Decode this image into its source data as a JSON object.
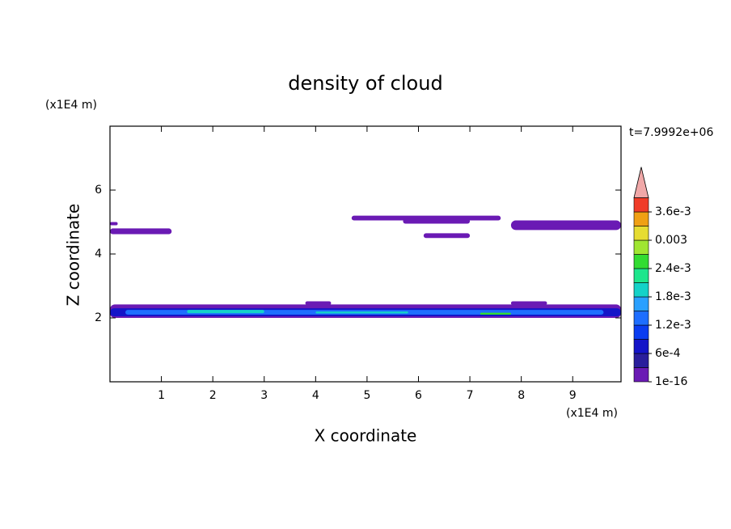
{
  "chart_data": {
    "type": "contour",
    "title": "density of cloud",
    "x_label": "X coordinate",
    "y_label": "Z coordinate",
    "x_unit": "(x1E4 m)",
    "y_unit": "(x1E4 m)",
    "annotation": "t=7.9992e+06",
    "xlim": [
      0,
      9.94
    ],
    "ylim": [
      0,
      8
    ],
    "xticks": [
      1,
      2,
      3,
      4,
      5,
      6,
      7,
      8,
      9
    ],
    "yticks": [
      2,
      4,
      6
    ],
    "levels": [
      1e-16,
      0.0003,
      0.0006,
      0.0009,
      0.0012,
      0.0015,
      0.0018,
      0.0021,
      0.0024,
      0.0027,
      0.003,
      0.0033,
      0.0036
    ],
    "colors": [
      "#6a1ab4",
      "#2a1e9c",
      "#1414c8",
      "#0a3cf0",
      "#1e6eff",
      "#2aa0ff",
      "#14d2c8",
      "#1ee68c",
      "#32dc32",
      "#a0e632",
      "#e6dc32",
      "#f0a014",
      "#f03c28"
    ],
    "extend_color": "#f0a8a8",
    "cbar_ticks": [
      1e-16,
      {
        "value": 0.0006,
        "label": "6e-4"
      },
      {
        "value": 0.0012,
        "label": "1.2e-3"
      },
      {
        "value": 0.0018,
        "label": "1.8e-3"
      },
      {
        "value": 0.0024,
        "label": "2.4e-3"
      },
      0.003,
      {
        "value": 0.0036,
        "label": "3.6e-3"
      }
    ],
    "regions": [
      {
        "x": [
          0,
          0.15
        ],
        "z": [
          4.9,
          5.0
        ],
        "value": 1e-16
      },
      {
        "x": [
          0,
          1.2
        ],
        "z": [
          4.62,
          4.8
        ],
        "value": 1e-16
      },
      {
        "x": [
          4.7,
          7.6
        ],
        "z": [
          5.05,
          5.2
        ],
        "value": 1e-16
      },
      {
        "x": [
          5.7,
          7.0
        ],
        "z": [
          4.95,
          5.1
        ],
        "value": 1e-16
      },
      {
        "x": [
          6.1,
          7.0
        ],
        "z": [
          4.5,
          4.65
        ],
        "value": 1e-16
      },
      {
        "x": [
          7.8,
          9.94
        ],
        "z": [
          4.75,
          5.05
        ],
        "value": 1e-16
      },
      {
        "x": [
          0,
          9.94
        ],
        "z": [
          2.0,
          2.42
        ],
        "value": 1e-16
      },
      {
        "x": [
          3.8,
          4.3
        ],
        "z": [
          2.4,
          2.52
        ],
        "value": 1e-16
      },
      {
        "x": [
          7.8,
          8.5
        ],
        "z": [
          2.4,
          2.52
        ],
        "value": 1e-16
      },
      {
        "x": [
          0,
          9.94
        ],
        "z": [
          2.05,
          2.3
        ],
        "value": 0.0006
      },
      {
        "x": [
          0.3,
          9.6
        ],
        "z": [
          2.1,
          2.25
        ],
        "value": 0.0012
      },
      {
        "x": [
          1.5,
          3.0
        ],
        "z": [
          2.15,
          2.25
        ],
        "value": 0.0018
      },
      {
        "x": [
          4.0,
          5.8
        ],
        "z": [
          2.14,
          2.2
        ],
        "value": 0.0018
      },
      {
        "x": [
          7.2,
          7.8
        ],
        "z": [
          2.1,
          2.16
        ],
        "value": 0.0024
      }
    ]
  }
}
